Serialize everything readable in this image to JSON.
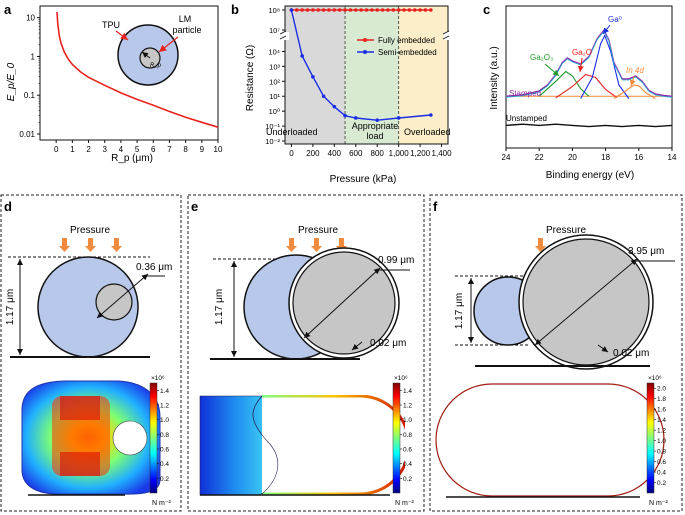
{
  "colors": {
    "red": "#e8231f",
    "blue": "#1a2ee6",
    "tpu": "#b8c8ea",
    "lm": "#c6c6c6",
    "orange": "#f08a3c",
    "green": "#1f9a2a",
    "purple": "#8e2fa6",
    "regionGray": "#d9d9d9",
    "regionGreen": "#d8ead2",
    "regionYellow": "#fbeec8"
  },
  "panel_a": {
    "letter": "a",
    "ylabel": "E_p/E_0",
    "xlabel": "R_p (μm)",
    "inset": {
      "tpu": "TPU",
      "lm_line1": "LM",
      "lm_line2": "particle",
      "rp": "R_p"
    }
  },
  "panel_b": {
    "letter": "b",
    "ylabel": "Resistance (Ω)",
    "xlabel": "Pressure (kPa)",
    "regions": [
      "Underloaded",
      "Appropriate",
      "load",
      "Overloaded"
    ],
    "legend": [
      "Fully embedded",
      "Semi-embedded"
    ]
  },
  "panel_c": {
    "letter": "c",
    "ylabel": "Intensity (a.u.)",
    "xlabel": "Binding energy (eV)",
    "labels": {
      "ga0": "Ga⁰",
      "ga2o": "Ga₂O",
      "ga2o3": "Ga₂O₃",
      "in4d": "In 4d",
      "stamped": "Stamped",
      "unstamped": "Unstamped"
    }
  },
  "chart_data": [
    {
      "type": "line",
      "title": "",
      "xlabel": "R_p (μm)",
      "ylabel": "E_p/E_0",
      "xlim": [
        -1,
        10
      ],
      "ylim": [
        0.007,
        20
      ],
      "yscale": "log",
      "xticks": [
        0,
        1,
        2,
        3,
        4,
        5,
        6,
        7,
        8,
        9,
        10
      ],
      "yticks": [
        0.01,
        0.1,
        1,
        10
      ],
      "ytick_labels": [
        "0.01",
        "0.1",
        "1",
        "10"
      ],
      "series": [
        {
          "name": "E_p/E_0",
          "x": [
            0.05,
            0.1,
            0.2,
            0.3,
            0.5,
            0.75,
            1,
            1.5,
            2,
            3,
            4,
            5,
            6,
            7,
            8,
            9,
            10
          ],
          "y": [
            14,
            6.8,
            3.3,
            2.2,
            1.3,
            0.85,
            0.62,
            0.4,
            0.29,
            0.18,
            0.115,
            0.078,
            0.055,
            0.038,
            0.027,
            0.02,
            0.015
          ]
        }
      ]
    },
    {
      "type": "line",
      "title": "",
      "xlabel": "Pressure (kPa)",
      "ylabel": "Resistance (Ω)",
      "xlim": [
        -60,
        1460
      ],
      "ylim": [
        0.01,
        100000000.0
      ],
      "yscale": "log",
      "axis_break": "y between 1e5 and 1e7",
      "xticks": [
        0,
        200,
        400,
        600,
        800,
        1000,
        1200,
        1400
      ],
      "xtick_labels": [
        "0",
        "200",
        "400",
        "600",
        "800",
        "1,000",
        "1,200",
        "1,400"
      ],
      "yticks": [
        0.01,
        0.1,
        1,
        10,
        100,
        1000,
        10000,
        10000000.0,
        100000000.0
      ],
      "ytick_labels": [
        "10⁻²",
        "10⁻¹",
        "10⁰",
        "10¹",
        "10²",
        "10³",
        "10⁴",
        "10⁷",
        "10⁸"
      ],
      "series": [
        {
          "name": "Fully embedded",
          "x": [
            0,
            50,
            100,
            150,
            200,
            250,
            300,
            350,
            400,
            450,
            500,
            550,
            600,
            650,
            700,
            750,
            800,
            850,
            900,
            950,
            1000,
            1050,
            1100,
            1150,
            1200,
            1250,
            1300
          ],
          "y": [
            100000000.0,
            100000000.0,
            100000000.0,
            100000000.0,
            100000000.0,
            100000000.0,
            100000000.0,
            100000000.0,
            100000000.0,
            100000000.0,
            100000000.0,
            100000000.0,
            100000000.0,
            100000000.0,
            100000000.0,
            100000000.0,
            100000000.0,
            100000000.0,
            100000000.0,
            100000000.0,
            100000000.0,
            100000000.0,
            100000000.0,
            100000000.0,
            100000000.0,
            100000000.0,
            100000000.0
          ]
        },
        {
          "name": "Semi-embedded",
          "x": [
            0,
            100,
            200,
            300,
            400,
            500,
            600,
            800,
            1000,
            1300
          ],
          "y": [
            100000000.0,
            5000,
            200,
            10,
            2,
            0.5,
            0.35,
            0.25,
            0.35,
            0.55
          ]
        }
      ],
      "regions": [
        {
          "name": "Underloaded",
          "x": [
            -60,
            500
          ]
        },
        {
          "name": "Appropriate load",
          "x": [
            500,
            1000
          ]
        },
        {
          "name": "Overloaded",
          "x": [
            1000,
            1460
          ]
        }
      ]
    },
    {
      "type": "line",
      "title": "",
      "xlabel": "Binding energy (eV)",
      "ylabel": "Intensity (a.u.)",
      "xlim": [
        24,
        14
      ],
      "xticks": [
        24,
        22,
        20,
        18,
        16,
        14
      ],
      "series": [
        {
          "name": "Stamped (envelope)",
          "x": [
            24,
            23,
            22,
            21.5,
            21,
            20.6,
            20.3,
            20,
            19.5,
            19,
            18.5,
            18.1,
            17.8,
            17.5,
            17,
            16.6,
            16.2,
            15.8,
            15.4,
            15,
            14.5,
            14
          ],
          "y": [
            0.05,
            0.07,
            0.12,
            0.2,
            0.34,
            0.5,
            0.56,
            0.52,
            0.48,
            0.58,
            0.82,
            0.93,
            0.8,
            0.5,
            0.28,
            0.28,
            0.32,
            0.25,
            0.13,
            0.08,
            0.06,
            0.05
          ]
        },
        {
          "name": "Ga2O3 fit",
          "x": [
            22,
            21,
            20.4,
            20,
            19.5,
            19
          ],
          "y": [
            0.05,
            0.25,
            0.38,
            0.32,
            0.15,
            0.05
          ]
        },
        {
          "name": "Ga2O fit",
          "x": [
            21,
            20,
            19.2,
            18.6,
            18,
            17.3
          ],
          "y": [
            0.03,
            0.18,
            0.34,
            0.3,
            0.14,
            0.03
          ]
        },
        {
          "name": "Ga0 fit",
          "x": [
            19.5,
            18.8,
            18.3,
            18.05,
            17.7,
            17.2,
            16.6
          ],
          "y": [
            0.02,
            0.3,
            0.75,
            0.86,
            0.65,
            0.2,
            0.02
          ]
        },
        {
          "name": "In 4d fit",
          "x": [
            17.5,
            16.8,
            16.3,
            16.0,
            15.6,
            15.0
          ],
          "y": [
            0.02,
            0.12,
            0.2,
            0.19,
            0.1,
            0.02
          ]
        },
        {
          "name": "Unstamped",
          "x": [
            24,
            23,
            22,
            21,
            20,
            19,
            18,
            17,
            16,
            15,
            14
          ],
          "y": [
            -0.02,
            -0.01,
            -0.02,
            -0.01,
            -0.02,
            -0.03,
            -0.02,
            -0.03,
            -0.02,
            -0.03,
            -0.02
          ]
        }
      ]
    },
    {
      "type": "heatmap",
      "title": "",
      "colorbar_ticks": [
        0.2,
        0.4,
        0.6,
        0.8,
        1.0,
        1.2,
        1.4
      ],
      "colorbar_tick_labels": [
        "0.2",
        "0.4",
        "0.6",
        "0.8",
        "1.0",
        "1.2",
        "1.4"
      ],
      "colorbar_scale": "×10⁶",
      "colorbar_unit": "N m⁻²",
      "colorbar_range": [
        0,
        1.5
      ]
    },
    {
      "type": "heatmap",
      "title": "",
      "colorbar_ticks": [
        0.2,
        0.4,
        0.6,
        0.8,
        1.0,
        1.2,
        1.4
      ],
      "colorbar_tick_labels": [
        "0.2",
        "0.4",
        "0.6",
        "0.8",
        "1.0",
        "1.2",
        "1.4"
      ],
      "colorbar_scale": "×10⁶",
      "colorbar_unit": "N m⁻²",
      "colorbar_range": [
        0,
        1.5
      ]
    },
    {
      "type": "heatmap",
      "title": "",
      "colorbar_ticks": [
        0.2,
        0.4,
        0.6,
        0.8,
        1.0,
        1.2,
        1.4,
        1.6,
        1.8,
        2.0
      ],
      "colorbar_tick_labels": [
        "0.2",
        "0.4",
        "0.6",
        "0.8",
        "1.0",
        "1.2",
        "1.4",
        "1.6",
        "1.8",
        "2.0"
      ],
      "colorbar_scale": "×10⁶",
      "colorbar_unit": "N m⁻²",
      "colorbar_range": [
        0,
        2.1
      ]
    }
  ],
  "panel_d": {
    "letter": "d",
    "pressure": "Pressure",
    "height": "1.17 μm",
    "radius": "0.36 μm"
  },
  "panel_e": {
    "letter": "e",
    "pressure": "Pressure",
    "height": "1.17 μm",
    "radius": "0.99 μm",
    "shell": "0.02 μm"
  },
  "panel_f": {
    "letter": "f",
    "pressure": "Pressure",
    "height": "1.17 μm",
    "radius": "3.95 μm",
    "shell": "0.02 μm"
  }
}
